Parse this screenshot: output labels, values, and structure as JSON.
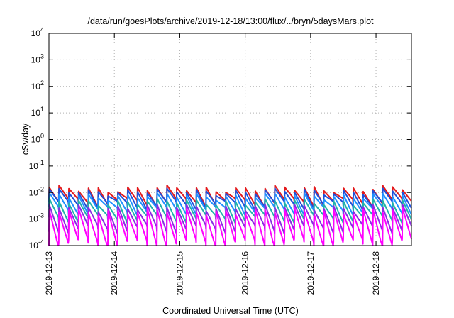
{
  "chart_data": {
    "type": "line",
    "title": "/data/run/goesPlots/archive/2019-12-18/13:00/flux/../bryn/5daysMars.plot",
    "xlabel": "Coordinated Universal Time (UTC)",
    "ylabel": "cSv/day",
    "yscale": "log",
    "ylim": [
      0.0001,
      10000
    ],
    "xlim": [
      "2019-12-13T00:00",
      "2019-12-18T13:00"
    ],
    "grid": true,
    "x_ticks": [
      "2019-12-13",
      "2019-12-14",
      "2019-12-15",
      "2019-12-16",
      "2019-12-17",
      "2019-12-18"
    ],
    "y_ticks": [
      {
        "base": "10",
        "exp": "-4"
      },
      {
        "base": "10",
        "exp": "-3"
      },
      {
        "base": "10",
        "exp": "-2"
      },
      {
        "base": "10",
        "exp": "-1"
      },
      {
        "base": "10",
        "exp": "0"
      },
      {
        "base": "10",
        "exp": "1"
      },
      {
        "base": "10",
        "exp": "2"
      },
      {
        "base": "10",
        "exp": "3"
      },
      {
        "base": "10",
        "exp": "4"
      }
    ],
    "pattern": {
      "start": "2019-12-13T00:00",
      "end": "2019-12-18T13:00",
      "period_hours": 3.6,
      "description": "sawtooth pulses"
    },
    "series": [
      {
        "color": "#e41a1c",
        "peak": 0.014,
        "trough": 0.0045
      },
      {
        "color": "#1f4fd8",
        "peak": 0.011,
        "trough": 0.0035
      },
      {
        "color": "#1e90ff",
        "peak": 0.0075,
        "trough": 0.0022
      },
      {
        "color": "#20b2aa",
        "peak": 0.0045,
        "trough": 0.0011
      },
      {
        "color": "#8a2be2",
        "peak": 0.0028,
        "trough": 0.00045
      },
      {
        "color": "#ff00ff",
        "peak": 0.002,
        "trough": 0.00013
      }
    ]
  }
}
